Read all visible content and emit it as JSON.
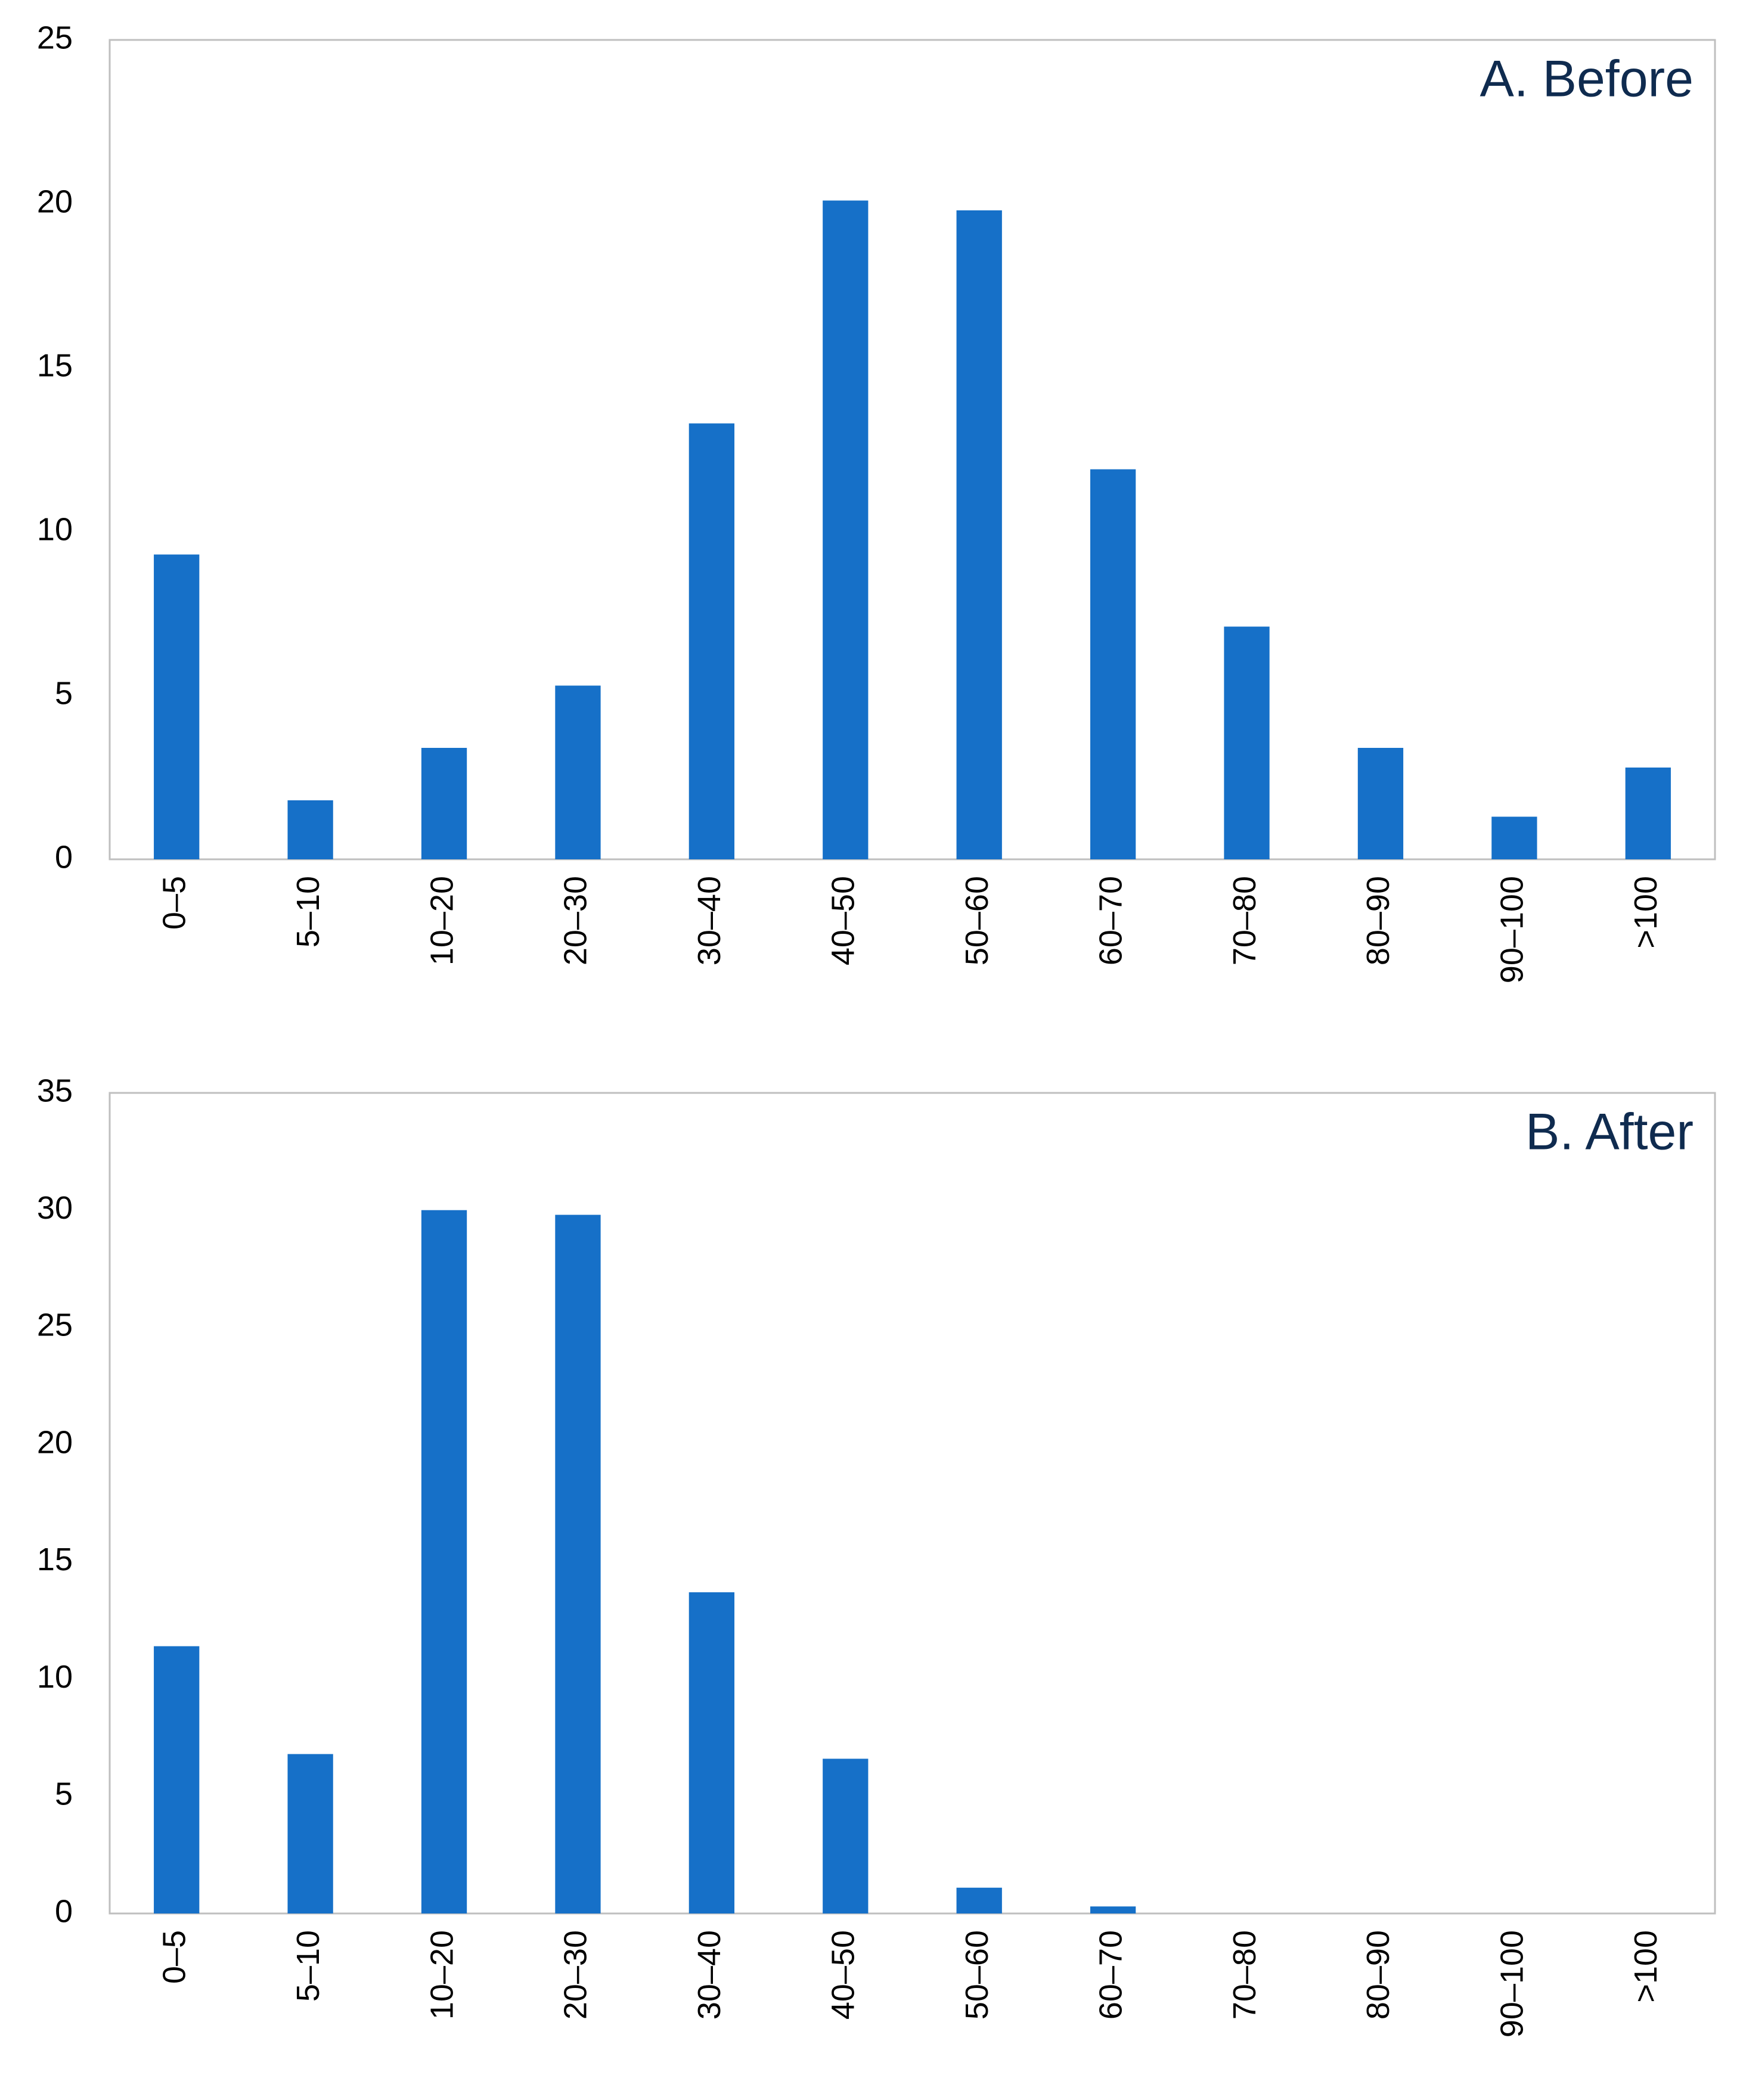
{
  "chart_data": [
    {
      "type": "bar",
      "title": "A. Before",
      "categories": [
        "0–5",
        "5–10",
        "10–20",
        "20–30",
        "30–40",
        "40–50",
        "50–60",
        "60–70",
        "70–80",
        "80–90",
        "90–100",
        ">100"
      ],
      "values": [
        9.3,
        1.8,
        3.4,
        5.3,
        13.3,
        20.1,
        19.8,
        11.9,
        7.1,
        3.4,
        1.3,
        2.8
      ],
      "color": "#1670c8",
      "ylim": [
        0,
        25
      ],
      "yticks": [
        0,
        5,
        10,
        15,
        20,
        25
      ],
      "grid": false
    },
    {
      "type": "bar",
      "title": "B. After",
      "categories": [
        "0–5",
        "5–10",
        "10–20",
        "20–30",
        "30–40",
        "40–50",
        "50–60",
        "60–70",
        "70–80",
        "80–90",
        "90–100",
        ">100"
      ],
      "values": [
        11.4,
        6.8,
        30.0,
        29.8,
        13.7,
        6.6,
        1.1,
        0.3,
        0,
        0,
        0,
        0
      ],
      "color": "#1670c8",
      "ylim": [
        0,
        35
      ],
      "yticks": [
        0,
        5,
        10,
        15,
        20,
        25,
        30,
        35
      ],
      "grid": false
    }
  ]
}
